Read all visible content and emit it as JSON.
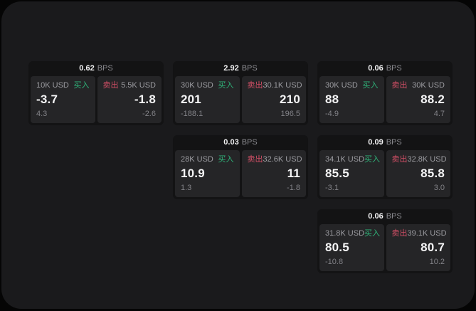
{
  "labels": {
    "bps": "BPS",
    "buy": "买入",
    "sell": "卖出"
  },
  "colors": {
    "buy": "#2fb379",
    "sell": "#d14f66",
    "surface": "#1a1a1c",
    "card": "#131314",
    "panel": "#252527"
  },
  "cards": [
    {
      "bps": "0.62",
      "buy": {
        "amount": "10K USD",
        "price": "-3.7",
        "delta": "4.3"
      },
      "sell": {
        "amount": "5.5K USD",
        "price": "-1.8",
        "delta": "-2.6"
      }
    },
    {
      "bps": "2.92",
      "buy": {
        "amount": "30K USD",
        "price": "201",
        "delta": "-188.1"
      },
      "sell": {
        "amount": "30.1K USD",
        "price": "210",
        "delta": "196.5"
      }
    },
    {
      "bps": "0.06",
      "buy": {
        "amount": "30K USD",
        "price": "88",
        "delta": "-4.9"
      },
      "sell": {
        "amount": "30K USD",
        "price": "88.2",
        "delta": "4.7"
      }
    },
    {
      "bps": "0.03",
      "buy": {
        "amount": "28K USD",
        "price": "10.9",
        "delta": "1.3"
      },
      "sell": {
        "amount": "32.6K USD",
        "price": "11",
        "delta": "-1.8"
      }
    },
    {
      "bps": "0.09",
      "buy": {
        "amount": "34.1K USD",
        "price": "85.5",
        "delta": "-3.1"
      },
      "sell": {
        "amount": "32.8K USD",
        "price": "85.8",
        "delta": "3.0"
      }
    },
    {
      "bps": "0.06",
      "buy": {
        "amount": "31.8K USD",
        "price": "80.5",
        "delta": "-10.8"
      },
      "sell": {
        "amount": "39.1K USD",
        "price": "80.7",
        "delta": "10.2"
      }
    }
  ]
}
